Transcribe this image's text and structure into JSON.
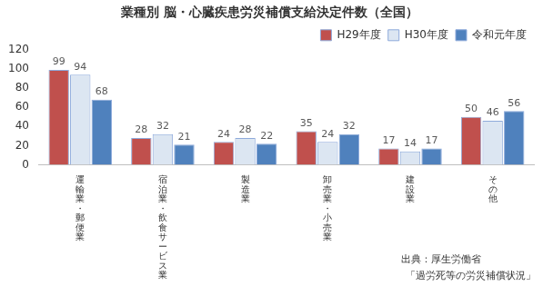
{
  "chart_data": {
    "type": "bar",
    "title": "業種別 脳・心臓疾患労災補償支給決定件数（全国）",
    "categories": [
      "運輸業・郵便業",
      "宿泊業・飲食サービス業",
      "製造業",
      "卸売業・小売業",
      "建設業",
      "その他"
    ],
    "series": [
      {
        "name": "H29年度",
        "color": "#c0504d",
        "values": [
          99,
          28,
          24,
          35,
          17,
          50
        ]
      },
      {
        "name": "H30年度",
        "color": "#dce6f2",
        "values": [
          94,
          32,
          28,
          24,
          14,
          46
        ]
      },
      {
        "name": "令和元年度",
        "color": "#4f81bd",
        "values": [
          68,
          21,
          22,
          32,
          17,
          56
        ]
      }
    ],
    "ylim": [
      0,
      120
    ],
    "yticks": [
      0,
      20,
      40,
      60,
      80,
      100,
      120
    ],
    "grid": false,
    "legend": "top-right",
    "data_labels": true,
    "annotations": [
      "出典：厚生労働省",
      "「過労死等の労災補償状況」"
    ]
  }
}
